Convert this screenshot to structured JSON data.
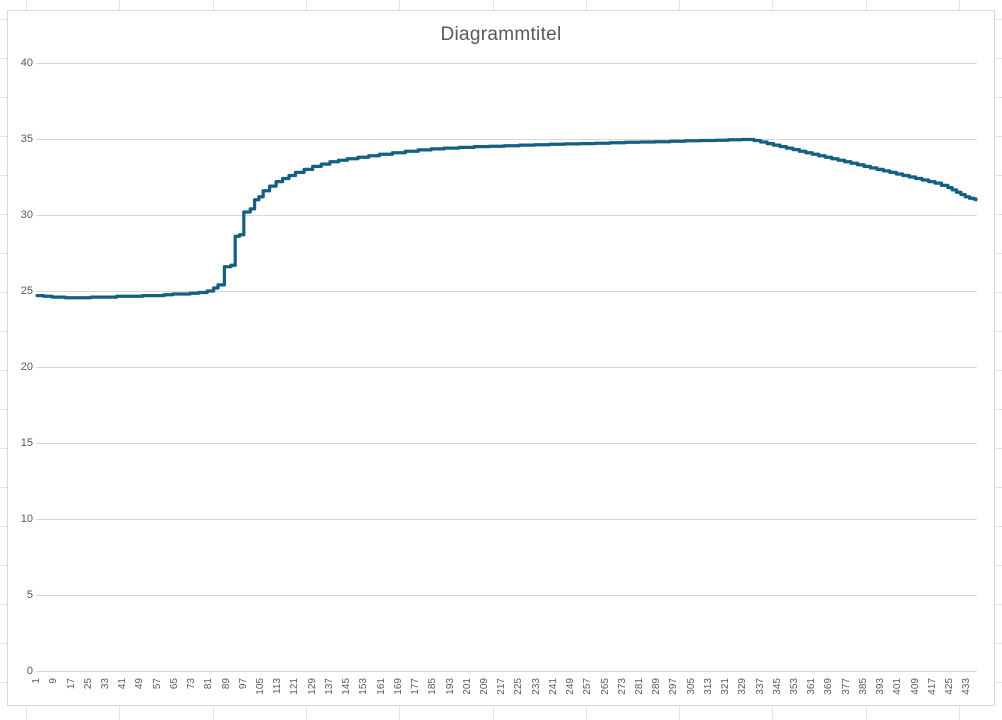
{
  "window": {
    "background_color": "#FFFFFF",
    "spreadsheet": {
      "gridline_color": "#E2E2E2",
      "column_start_x": 26,
      "column_step": 93.3,
      "row_start_y": 19,
      "row_step": 39
    }
  },
  "chart": {
    "title": "Diagrammtitel",
    "title_color": "#595959",
    "background_color": "#FFFFFF",
    "border_color": "#D9D9D9",
    "gridline_color": "#D9D9D9",
    "axis_label_color": "#595959"
  },
  "chart_data": {
    "type": "line",
    "step": true,
    "title": "Diagrammtitel",
    "xlabel": "",
    "ylabel": "",
    "ylim": [
      0,
      40
    ],
    "y_ticks": [
      0,
      5,
      10,
      15,
      20,
      25,
      30,
      35,
      40
    ],
    "x_tick_labels": [
      1,
      9,
      17,
      25,
      33,
      41,
      49,
      57,
      65,
      73,
      81,
      89,
      97,
      105,
      113,
      121,
      129,
      137,
      145,
      153,
      161,
      169,
      177,
      185,
      193,
      201,
      209,
      217,
      225,
      233,
      241,
      249,
      257,
      265,
      273,
      281,
      289,
      297,
      305,
      313,
      321,
      329,
      337,
      345,
      353,
      361,
      369,
      377,
      385,
      393,
      401,
      409,
      417,
      425,
      433
    ],
    "x_count": 437,
    "grid": "horizontal",
    "legend": "none",
    "series": [
      {
        "color": "#156082",
        "width": 3.25,
        "points": [
          [
            1,
            24.7
          ],
          [
            4,
            24.65
          ],
          [
            8,
            24.6
          ],
          [
            14,
            24.55
          ],
          [
            20,
            24.55
          ],
          [
            26,
            24.6
          ],
          [
            32,
            24.6
          ],
          [
            38,
            24.65
          ],
          [
            44,
            24.65
          ],
          [
            50,
            24.7
          ],
          [
            55,
            24.7
          ],
          [
            60,
            24.75
          ],
          [
            64,
            24.8
          ],
          [
            68,
            24.8
          ],
          [
            72,
            24.85
          ],
          [
            76,
            24.9
          ],
          [
            80,
            25.0
          ],
          [
            83,
            25.2
          ],
          [
            85,
            25.4
          ],
          [
            88,
            26.6
          ],
          [
            91,
            26.7
          ],
          [
            93,
            28.6
          ],
          [
            95,
            28.7
          ],
          [
            97,
            30.2
          ],
          [
            100,
            30.4
          ],
          [
            102,
            31.0
          ],
          [
            104,
            31.2
          ],
          [
            106,
            31.6
          ],
          [
            109,
            31.9
          ],
          [
            112,
            32.2
          ],
          [
            115,
            32.4
          ],
          [
            118,
            32.6
          ],
          [
            121,
            32.8
          ],
          [
            125,
            33.0
          ],
          [
            129,
            33.2
          ],
          [
            133,
            33.35
          ],
          [
            137,
            33.5
          ],
          [
            141,
            33.6
          ],
          [
            145,
            33.7
          ],
          [
            150,
            33.8
          ],
          [
            155,
            33.9
          ],
          [
            160,
            34.0
          ],
          [
            166,
            34.1
          ],
          [
            172,
            34.2
          ],
          [
            178,
            34.28
          ],
          [
            184,
            34.35
          ],
          [
            190,
            34.4
          ],
          [
            197,
            34.45
          ],
          [
            204,
            34.5
          ],
          [
            211,
            34.52
          ],
          [
            218,
            34.55
          ],
          [
            225,
            34.6
          ],
          [
            232,
            34.62
          ],
          [
            239,
            34.65
          ],
          [
            246,
            34.68
          ],
          [
            253,
            34.7
          ],
          [
            260,
            34.72
          ],
          [
            267,
            34.75
          ],
          [
            274,
            34.78
          ],
          [
            281,
            34.8
          ],
          [
            288,
            34.82
          ],
          [
            295,
            34.85
          ],
          [
            302,
            34.88
          ],
          [
            309,
            34.9
          ],
          [
            316,
            34.92
          ],
          [
            322,
            34.95
          ],
          [
            328,
            34.97
          ],
          [
            334,
            34.9
          ],
          [
            337,
            34.8
          ],
          [
            340,
            34.7
          ],
          [
            343,
            34.6
          ],
          [
            346,
            34.5
          ],
          [
            349,
            34.4
          ],
          [
            352,
            34.3
          ],
          [
            355,
            34.2
          ],
          [
            358,
            34.1
          ],
          [
            361,
            34.0
          ],
          [
            364,
            33.9
          ],
          [
            367,
            33.8
          ],
          [
            370,
            33.7
          ],
          [
            373,
            33.6
          ],
          [
            376,
            33.5
          ],
          [
            379,
            33.4
          ],
          [
            382,
            33.3
          ],
          [
            385,
            33.2
          ],
          [
            388,
            33.1
          ],
          [
            391,
            33.0
          ],
          [
            394,
            32.9
          ],
          [
            397,
            32.8
          ],
          [
            400,
            32.7
          ],
          [
            403,
            32.6
          ],
          [
            406,
            32.5
          ],
          [
            409,
            32.4
          ],
          [
            412,
            32.3
          ],
          [
            415,
            32.2
          ],
          [
            418,
            32.1
          ],
          [
            421,
            31.95
          ],
          [
            424,
            31.8
          ],
          [
            426,
            31.65
          ],
          [
            428,
            31.5
          ],
          [
            430,
            31.35
          ],
          [
            432,
            31.2
          ],
          [
            434,
            31.1
          ],
          [
            436,
            31.05
          ],
          [
            437,
            31.0
          ]
        ]
      }
    ]
  }
}
